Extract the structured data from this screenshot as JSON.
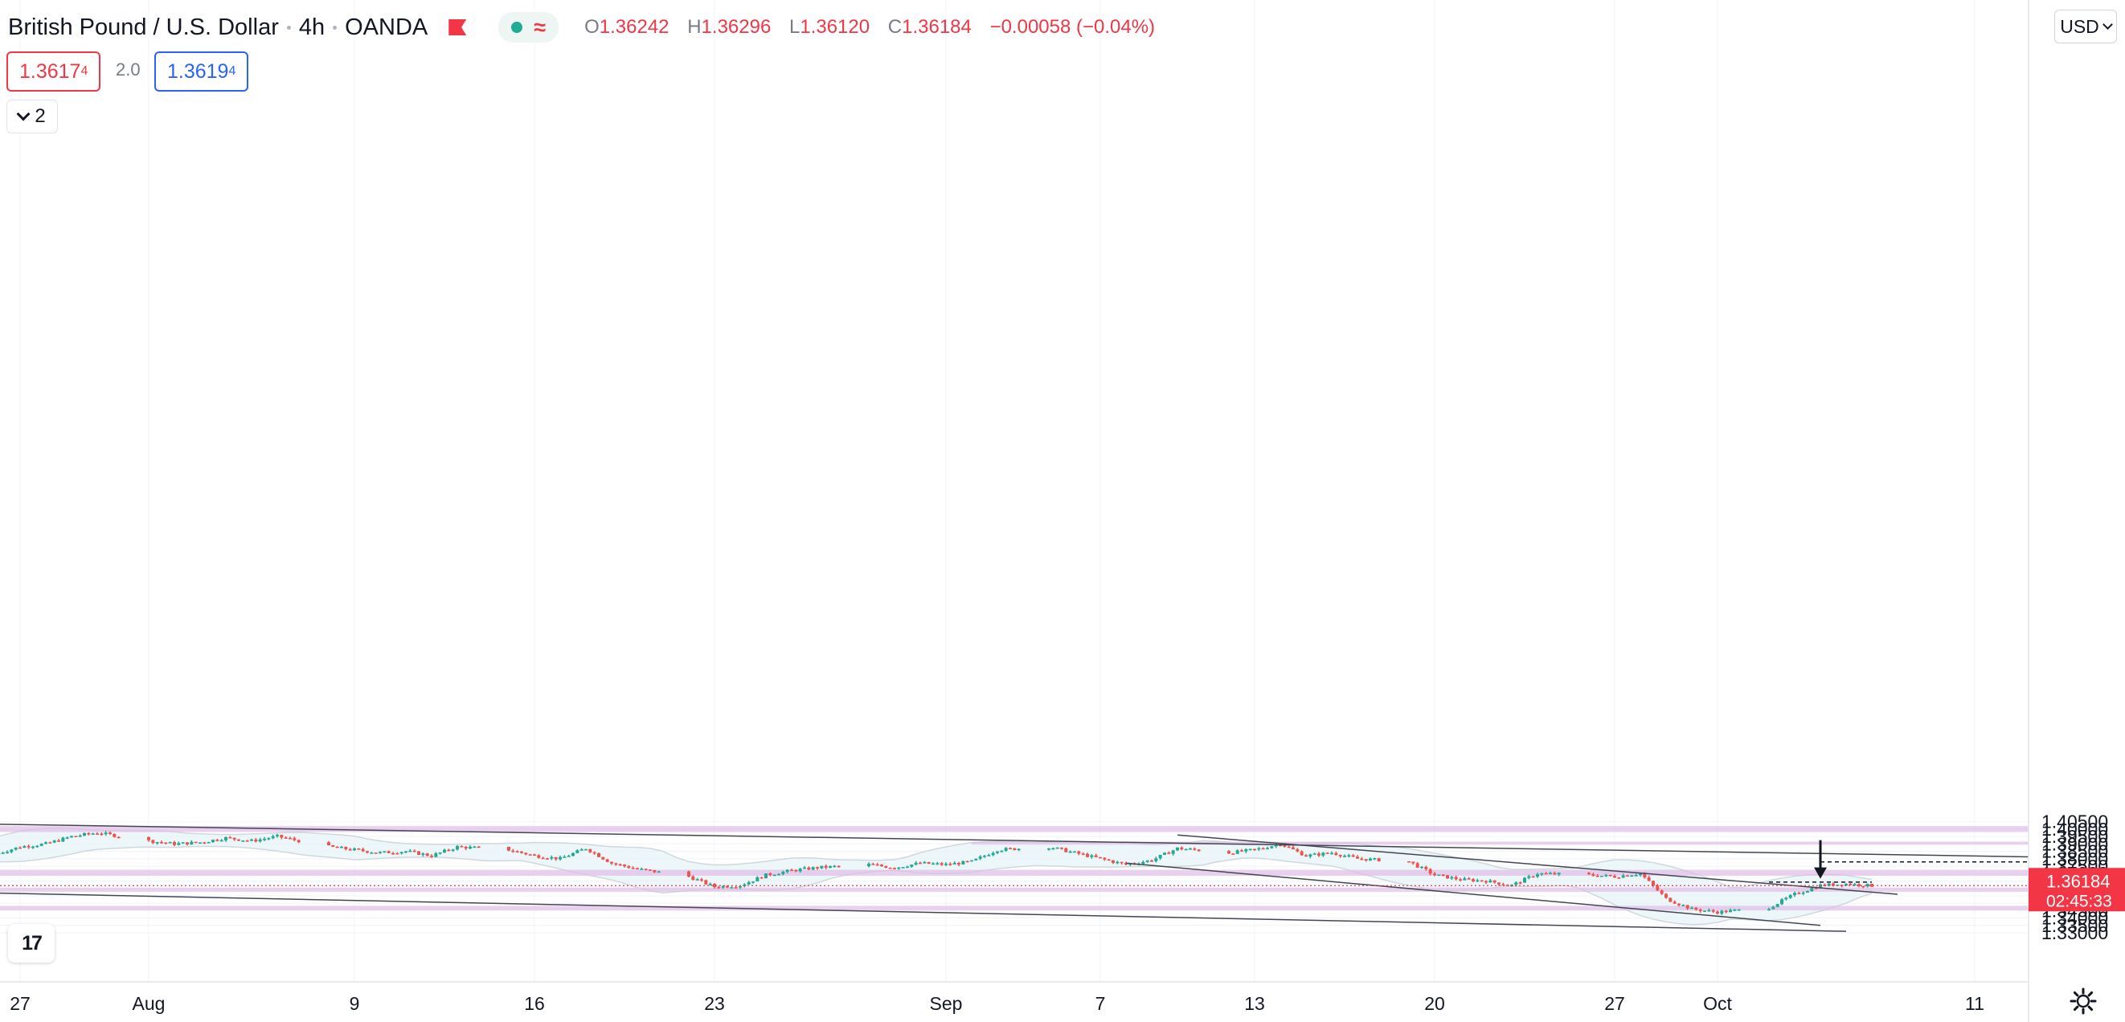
{
  "header": {
    "symbol": "British Pound / U.S. Dollar",
    "interval": "4h",
    "broker": "OANDA",
    "ohlc": {
      "o_label": "O",
      "o_value": "1.36242",
      "h_label": "H",
      "h_value": "1.36296",
      "l_label": "L",
      "l_value": "1.36120",
      "c_label": "C",
      "c_value": "1.36184",
      "change": "−0.00058 (−0.04%)"
    },
    "sell_price": "1.3617",
    "sell_price_sup": "4",
    "spread": "2.0",
    "buy_price": "1.3619",
    "buy_price_sup": "4",
    "indicators_count": "2",
    "currency": "USD"
  },
  "colors": {
    "bull": "#22ab94",
    "bear": "#ef5350",
    "zone": "#e1bee7",
    "band_fill": "#e8f4f8",
    "band_line": "#cfd8dc",
    "trendline": "#434651",
    "last_price": "#f23645"
  },
  "chart_data": {
    "type": "candlestick",
    "symbol": "GBPUSD",
    "timeframe": "4h",
    "y_axis": {
      "ticks": [
        "1.40500",
        "1.40000",
        "1.39500",
        "1.39000",
        "1.38500",
        "1.38000",
        "1.37500",
        "1.37000",
        "1.36500",
        "1.36000",
        "1.35500",
        "1.35000",
        "1.34500",
        "1.34000",
        "1.33500",
        "1.33000"
      ],
      "range": [
        1.3285,
        1.4065
      ]
    },
    "x_axis": {
      "ticks": [
        "27",
        "Aug",
        "9",
        "16",
        "23",
        "Sep",
        "7",
        "13",
        "20",
        "27",
        "Oct",
        "11"
      ],
      "tick_dates": [
        "2021-07-27",
        "2021-08-01",
        "2021-08-09",
        "2021-08-16",
        "2021-08-23",
        "2021-09-01",
        "2021-09-07",
        "2021-09-13",
        "2021-09-20",
        "2021-09-27",
        "2021-10-01",
        "2021-10-11"
      ]
    },
    "last_price": "1.36184",
    "countdown": "02:45:33",
    "price_path": [
      [
        "2021-07-26",
        1.383
      ],
      [
        "2021-07-27",
        1.388
      ],
      [
        "2021-07-28",
        1.39
      ],
      [
        "2021-07-29",
        1.395
      ],
      [
        "2021-07-30",
        1.3975
      ],
      [
        "2021-08-01",
        1.392
      ],
      [
        "2021-08-02",
        1.39
      ],
      [
        "2021-08-03",
        1.391
      ],
      [
        "2021-08-04",
        1.394
      ],
      [
        "2021-08-05",
        1.392
      ],
      [
        "2021-08-06",
        1.395
      ],
      [
        "2021-08-08",
        1.388
      ],
      [
        "2021-08-09",
        1.386
      ],
      [
        "2021-08-10",
        1.384
      ],
      [
        "2021-08-11",
        1.385
      ],
      [
        "2021-08-12",
        1.382
      ],
      [
        "2021-08-13",
        1.388
      ],
      [
        "2021-08-15",
        1.386
      ],
      [
        "2021-08-16",
        1.382
      ],
      [
        "2021-08-17",
        1.38
      ],
      [
        "2021-08-18",
        1.387
      ],
      [
        "2021-08-19",
        1.377
      ],
      [
        "2021-08-20",
        1.373
      ],
      [
        "2021-08-22",
        1.368
      ],
      [
        "2021-08-23",
        1.361
      ],
      [
        "2021-08-24",
        1.362
      ],
      [
        "2021-08-25",
        1.369
      ],
      [
        "2021-08-26",
        1.372
      ],
      [
        "2021-08-27",
        1.374
      ],
      [
        "2021-08-29",
        1.376
      ],
      [
        "2021-08-30",
        1.374
      ],
      [
        "2021-08-31",
        1.377
      ],
      [
        "2021-09-01",
        1.376
      ],
      [
        "2021-09-02",
        1.378
      ],
      [
        "2021-09-03",
        1.386
      ],
      [
        "2021-09-05",
        1.388
      ],
      [
        "2021-09-06",
        1.384
      ],
      [
        "2021-09-07",
        1.38
      ],
      [
        "2021-09-08",
        1.376
      ],
      [
        "2021-09-09",
        1.379
      ],
      [
        "2021-09-10",
        1.387
      ],
      [
        "2021-09-12",
        1.384
      ],
      [
        "2021-09-13",
        1.386
      ],
      [
        "2021-09-14",
        1.39
      ],
      [
        "2021-09-15",
        1.382
      ],
      [
        "2021-09-16",
        1.384
      ],
      [
        "2021-09-17",
        1.38
      ],
      [
        "2021-09-19",
        1.378
      ],
      [
        "2021-09-20",
        1.369
      ],
      [
        "2021-09-21",
        1.366
      ],
      [
        "2021-09-22",
        1.365
      ],
      [
        "2021-09-23",
        1.362
      ],
      [
        "2021-09-24",
        1.37
      ],
      [
        "2021-09-26",
        1.369
      ],
      [
        "2021-09-27",
        1.368
      ],
      [
        "2021-09-28",
        1.37
      ],
      [
        "2021-09-29",
        1.353
      ],
      [
        "2021-09-30",
        1.346
      ],
      [
        "2021-10-01",
        1.344
      ],
      [
        "2021-10-03",
        1.347
      ],
      [
        "2021-10-04",
        1.356
      ],
      [
        "2021-10-05",
        1.362
      ],
      [
        "2021-10-06",
        1.363
      ],
      [
        "2021-10-07",
        1.3618
      ]
    ],
    "zones": [
      {
        "from": "2021-07-20",
        "to": "2021-10-15",
        "low": 1.398,
        "high": 1.402
      },
      {
        "from": "2021-09-02",
        "to": "2021-10-15",
        "low": 1.3895,
        "high": 1.3915
      },
      {
        "from": "2021-07-20",
        "to": "2021-10-15",
        "low": 1.3685,
        "high": 1.3725
      },
      {
        "from": "2021-07-20",
        "to": "2021-10-15",
        "low": 1.3577,
        "high": 1.3605
      },
      {
        "from": "2021-07-20",
        "to": "2021-10-15",
        "low": 1.3452,
        "high": 1.3482
      }
    ],
    "trendlines": [
      {
        "p1": [
          "2021-07-20",
          1.405
        ],
        "p2": [
          "2021-10-14",
          1.381
        ]
      },
      {
        "p1": [
          "2021-07-20",
          1.359
        ],
        "p2": [
          "2021-10-06",
          1.331
        ]
      },
      {
        "p1": [
          "2021-09-10",
          1.396
        ],
        "p2": [
          "2021-10-08",
          1.356
        ]
      },
      {
        "p1": [
          "2021-09-08",
          1.377
        ],
        "p2": [
          "2021-10-05",
          1.335
        ]
      }
    ],
    "dashed_levels": [
      {
        "from": "2021-10-05",
        "to": "2021-10-14",
        "value": 1.3778
      },
      {
        "from": "2021-10-03",
        "to": "2021-10-07",
        "value": 1.3642
      }
    ],
    "markers": [
      {
        "type": "arrow-down",
        "date": "2021-10-05",
        "value": 1.3665
      }
    ]
  }
}
